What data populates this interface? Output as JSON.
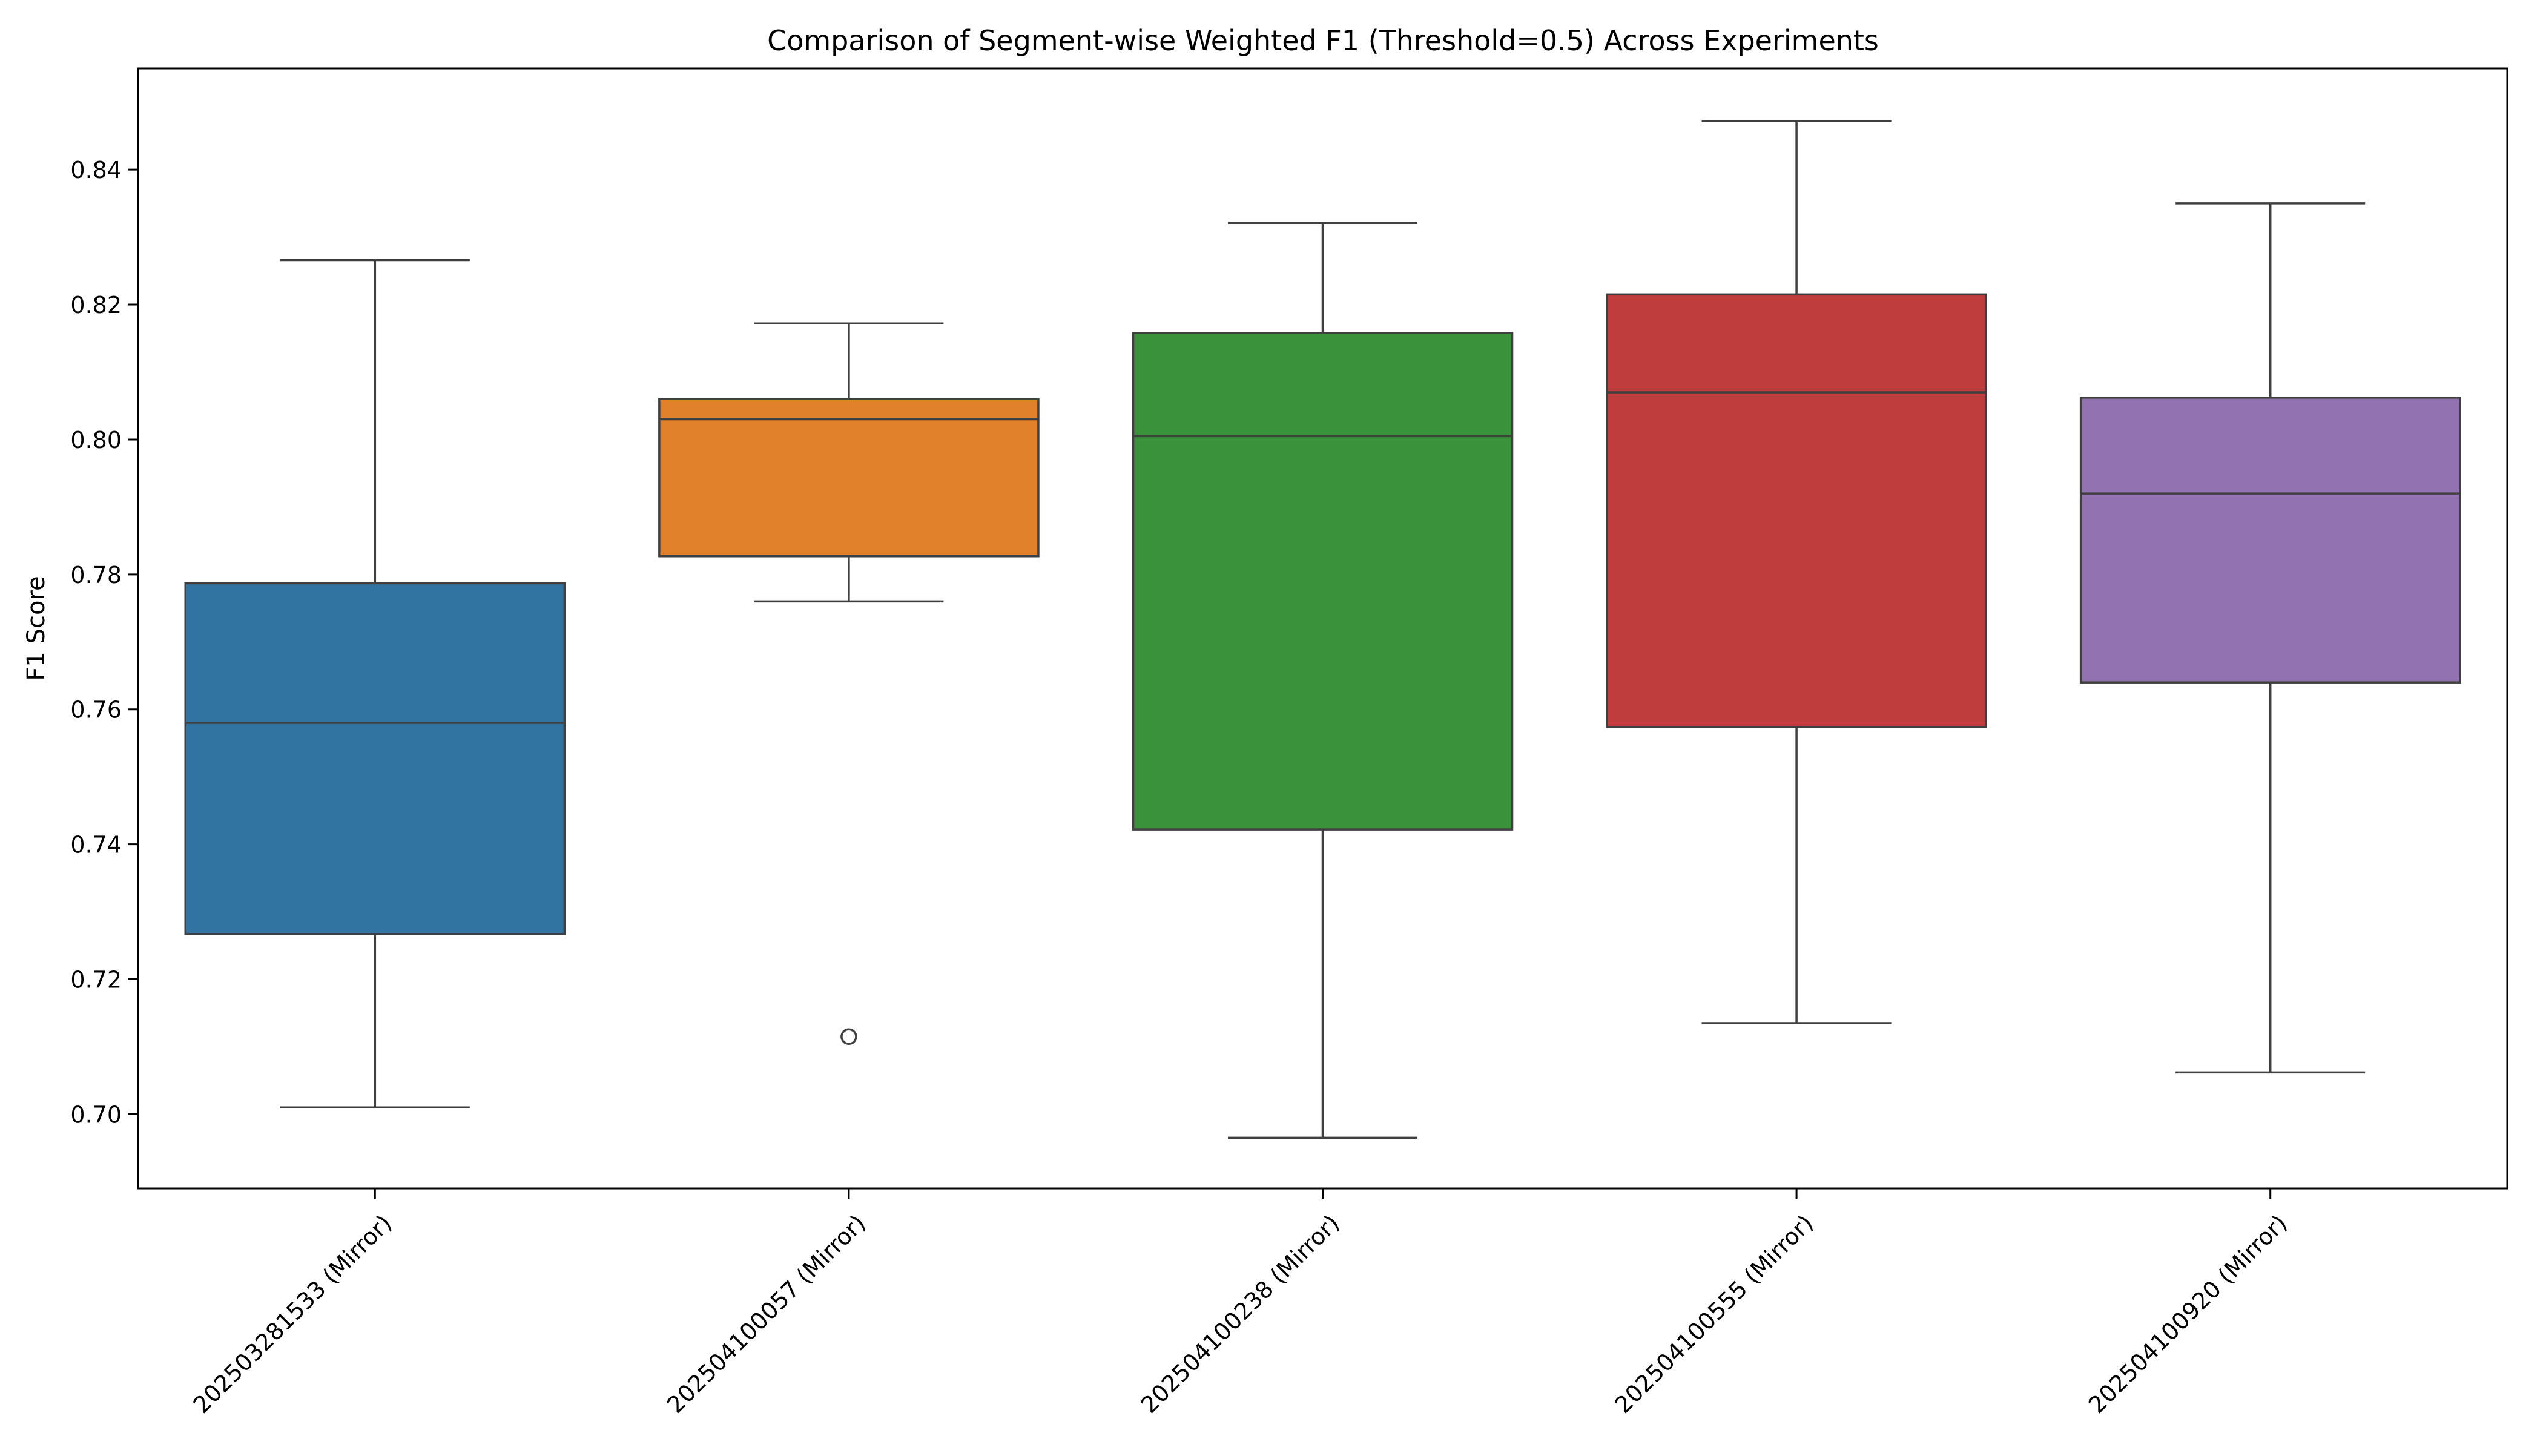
{
  "chart_data": {
    "type": "box",
    "title": "Comparison of Segment-wise Weighted F1 (Threshold=0.5) Across Experiments",
    "xlabel": "",
    "ylabel": "F1 Score",
    "ylim": [
      0.689,
      0.855
    ],
    "yticks": [
      0.7,
      0.72,
      0.74,
      0.76,
      0.78,
      0.8,
      0.82,
      0.84
    ],
    "ytick_labels": [
      "0.70",
      "0.72",
      "0.74",
      "0.76",
      "0.78",
      "0.80",
      "0.82",
      "0.84"
    ],
    "grid": false,
    "legend": "none",
    "categories": [
      "202503281533 (Mirror)",
      "202504100057 (Mirror)",
      "202504100238 (Mirror)",
      "202504100555 (Mirror)",
      "202504100920 (Mirror)"
    ],
    "boxes": [
      {
        "whisker_low": 0.701,
        "q1": 0.7267,
        "median": 0.758,
        "q3": 0.7787,
        "whisker_high": 0.8266,
        "outliers": [],
        "color": "#3274a1"
      },
      {
        "whisker_low": 0.776,
        "q1": 0.7827,
        "median": 0.803,
        "q3": 0.806,
        "whisker_high": 0.8172,
        "outliers": [
          0.7115
        ],
        "color": "#e1812c"
      },
      {
        "whisker_low": 0.6965,
        "q1": 0.7422,
        "median": 0.8005,
        "q3": 0.8158,
        "whisker_high": 0.8321,
        "outliers": [],
        "color": "#3a923a"
      },
      {
        "whisker_low": 0.7135,
        "q1": 0.7574,
        "median": 0.807,
        "q3": 0.8215,
        "whisker_high": 0.8472,
        "outliers": [],
        "color": "#c03d3e"
      },
      {
        "whisker_low": 0.7062,
        "q1": 0.764,
        "median": 0.792,
        "q3": 0.8062,
        "whisker_high": 0.835,
        "outliers": [],
        "color": "#9372b2"
      }
    ]
  }
}
